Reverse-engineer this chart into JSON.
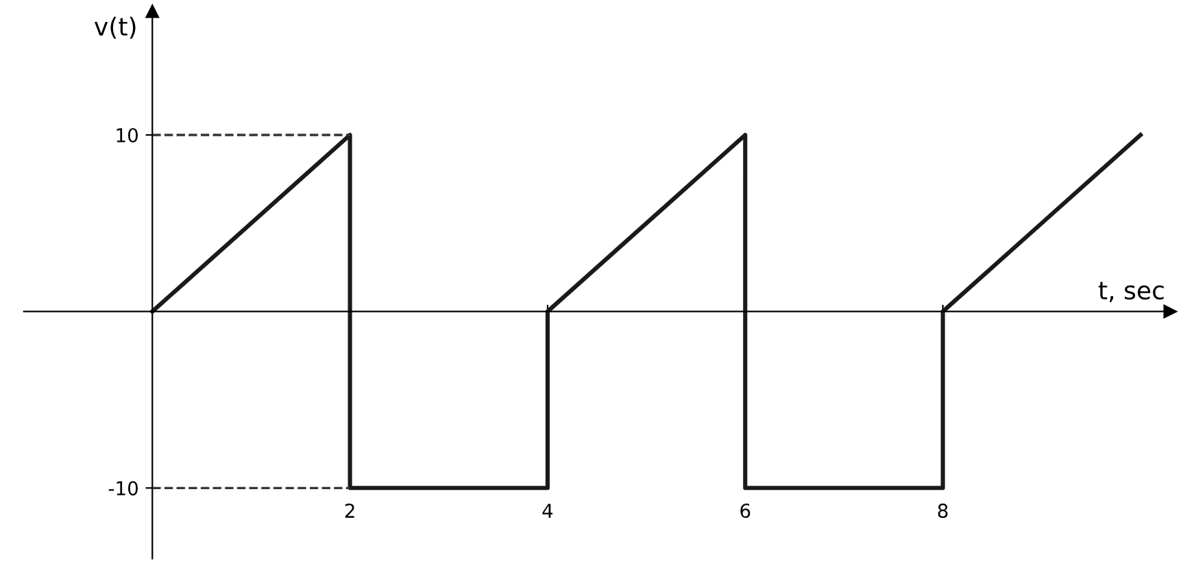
{
  "chart_data": {
    "type": "line",
    "xlabel": "t, sec",
    "ylabel": "v(t)",
    "series": [
      {
        "color": "#1a1a1a",
        "x": [
          0,
          2,
          2,
          4,
          4,
          6,
          6,
          8,
          8,
          10
        ],
        "values": [
          0,
          10,
          -10,
          -10,
          0,
          10,
          -10,
          -10,
          0,
          10
        ]
      }
    ],
    "xlim": [
      -1.3,
      10.3
    ],
    "ylim": [
      -14,
      17
    ],
    "xticks": [
      2,
      4,
      6,
      8
    ],
    "yticks": [
      10,
      -10
    ],
    "ref_lines": [
      {
        "axis": "y",
        "value": 10,
        "line_style": "dashed",
        "color": "#333333"
      },
      {
        "axis": "y",
        "value": -10,
        "line_style": "dashed",
        "color": "#333333"
      }
    ],
    "grid": false,
    "marker": "none",
    "line_style": "solid"
  }
}
